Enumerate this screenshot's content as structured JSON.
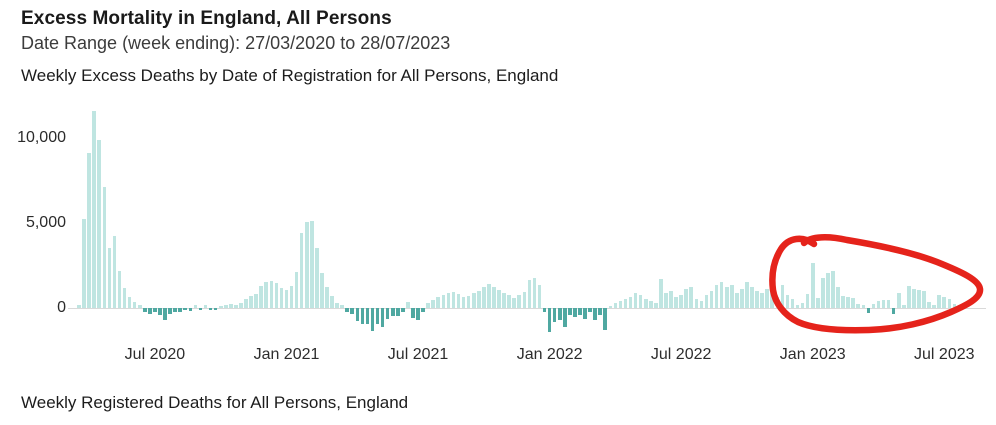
{
  "page": {
    "title": "Excess Mortality in England, All Persons",
    "date_range": "Date Range (week ending): 27/03/2020 to 28/07/2023",
    "chart_title": "Weekly Excess Deaths by Date of Registration for All Persons, England",
    "footer_title": "Weekly Registered Deaths for All Persons, England"
  },
  "colors": {
    "positive_bar": "#bfe5e1",
    "negative_bar": "#4fa8a1",
    "axis_line": "#d9d9d9",
    "annotation_red": "#e5231b",
    "title_text": "#1a1a1a",
    "subtitle_text": "#3c3c3c"
  },
  "chart_data": {
    "type": "bar",
    "title": "Weekly Excess Deaths by Date of Registration for All Persons, England",
    "xlabel": "",
    "ylabel": "",
    "x_unit": "week ending",
    "x_start_week_ending": "27/03/2020",
    "x_end_week_ending": "28/07/2023",
    "n_weeks": 175,
    "ylim": [
      -1500,
      12000
    ],
    "grid": false,
    "legend": false,
    "y_ticks": [
      0,
      5000,
      10000
    ],
    "y_tick_labels": [
      "0",
      "5,000",
      "10,000"
    ],
    "x_ticks": [
      {
        "label": "Jul 2020",
        "week_index": 15
      },
      {
        "label": "Jan 2021",
        "week_index": 41
      },
      {
        "label": "Jul 2021",
        "week_index": 67
      },
      {
        "label": "Jan 2022",
        "week_index": 93
      },
      {
        "label": "Jul 2022",
        "week_index": 119
      },
      {
        "label": "Jan 2023",
        "week_index": 145
      },
      {
        "label": "Jul 2023",
        "week_index": 171
      }
    ],
    "values": [
      150,
      5250,
      9100,
      11600,
      9900,
      7100,
      3500,
      4250,
      2200,
      1150,
      650,
      370,
      150,
      -250,
      -330,
      -235,
      -430,
      -680,
      -330,
      -235,
      -235,
      -140,
      -190,
      150,
      -90,
      200,
      -140,
      -90,
      90,
      150,
      240,
      200,
      290,
      530,
      720,
      820,
      1290,
      1500,
      1590,
      1470,
      1170,
      1080,
      1280,
      2100,
      4400,
      5050,
      5100,
      3520,
      2050,
      1250,
      700,
      300,
      150,
      -220,
      -380,
      -780,
      -960,
      -960,
      -1380,
      -960,
      -1140,
      -660,
      -480,
      -480,
      -220,
      380,
      -580,
      -720,
      -260,
      300,
      460,
      620,
      740,
      860,
      940,
      820,
      660,
      700,
      860,
      1020,
      1260,
      1400,
      1220,
      1060,
      880,
      740,
      560,
      740,
      960,
      1620,
      1740,
      1360,
      -250,
      -1400,
      -850,
      -700,
      -1100,
      -400,
      -550,
      -400,
      -650,
      -250,
      -700,
      -400,
      -1300,
      100,
      320,
      430,
      550,
      670,
      900,
      790,
      550,
      430,
      320,
      1700,
      900,
      1020,
      670,
      790,
      1140,
      1260,
      550,
      430,
      790,
      1020,
      1380,
      1500,
      1260,
      1380,
      900,
      1140,
      1500,
      1260,
      1020,
      900,
      1140,
      1260,
      670,
      1380,
      790,
      550,
      200,
      320,
      800,
      2640,
      600,
      1780,
      2080,
      2150,
      1260,
      720,
      650,
      600,
      250,
      200,
      -300,
      250,
      400,
      500,
      450,
      -350,
      900,
      200,
      1300,
      1100,
      1050,
      1000,
      350,
      150,
      750,
      650,
      550,
      250,
      150
    ],
    "annotation": {
      "shape": "hand-drawn red circle",
      "color": "#e5231b",
      "circled_region": "bars from roughly Nov 2022 to Jul 2023",
      "x_range_week_indices": [
        136,
        174
      ]
    }
  }
}
